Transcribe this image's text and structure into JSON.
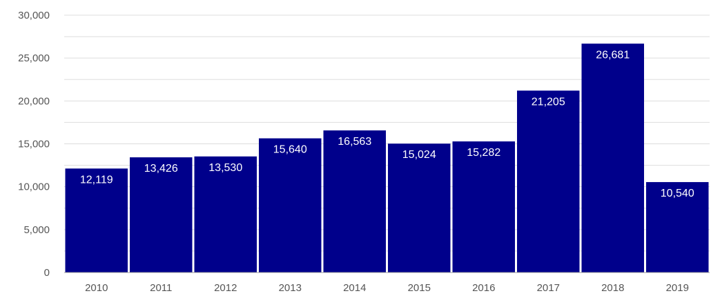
{
  "chart_data": {
    "type": "bar",
    "title": "",
    "xlabel": "",
    "ylabel": "",
    "categories": [
      "2010",
      "2011",
      "2012",
      "2013",
      "2014",
      "2015",
      "2016",
      "2017",
      "2018",
      "2019"
    ],
    "values": [
      12119,
      13426,
      13530,
      15640,
      16563,
      15024,
      15282,
      21205,
      26681,
      10540
    ],
    "value_labels": [
      "12,119",
      "13,426",
      "13,530",
      "15,640",
      "16,563",
      "15,024",
      "15,282",
      "21,205",
      "26,681",
      "10,540"
    ],
    "ylim": [
      0,
      30000
    ],
    "yticks": [
      0,
      5000,
      10000,
      15000,
      20000,
      25000,
      30000
    ],
    "ytick_labels": [
      "0",
      "5,000",
      "10,000",
      "15,000",
      "20,000",
      "25,000",
      "30,000"
    ],
    "grid": true,
    "legend": "none",
    "bar_color": "#00008b",
    "label_color": "#ffffff"
  }
}
